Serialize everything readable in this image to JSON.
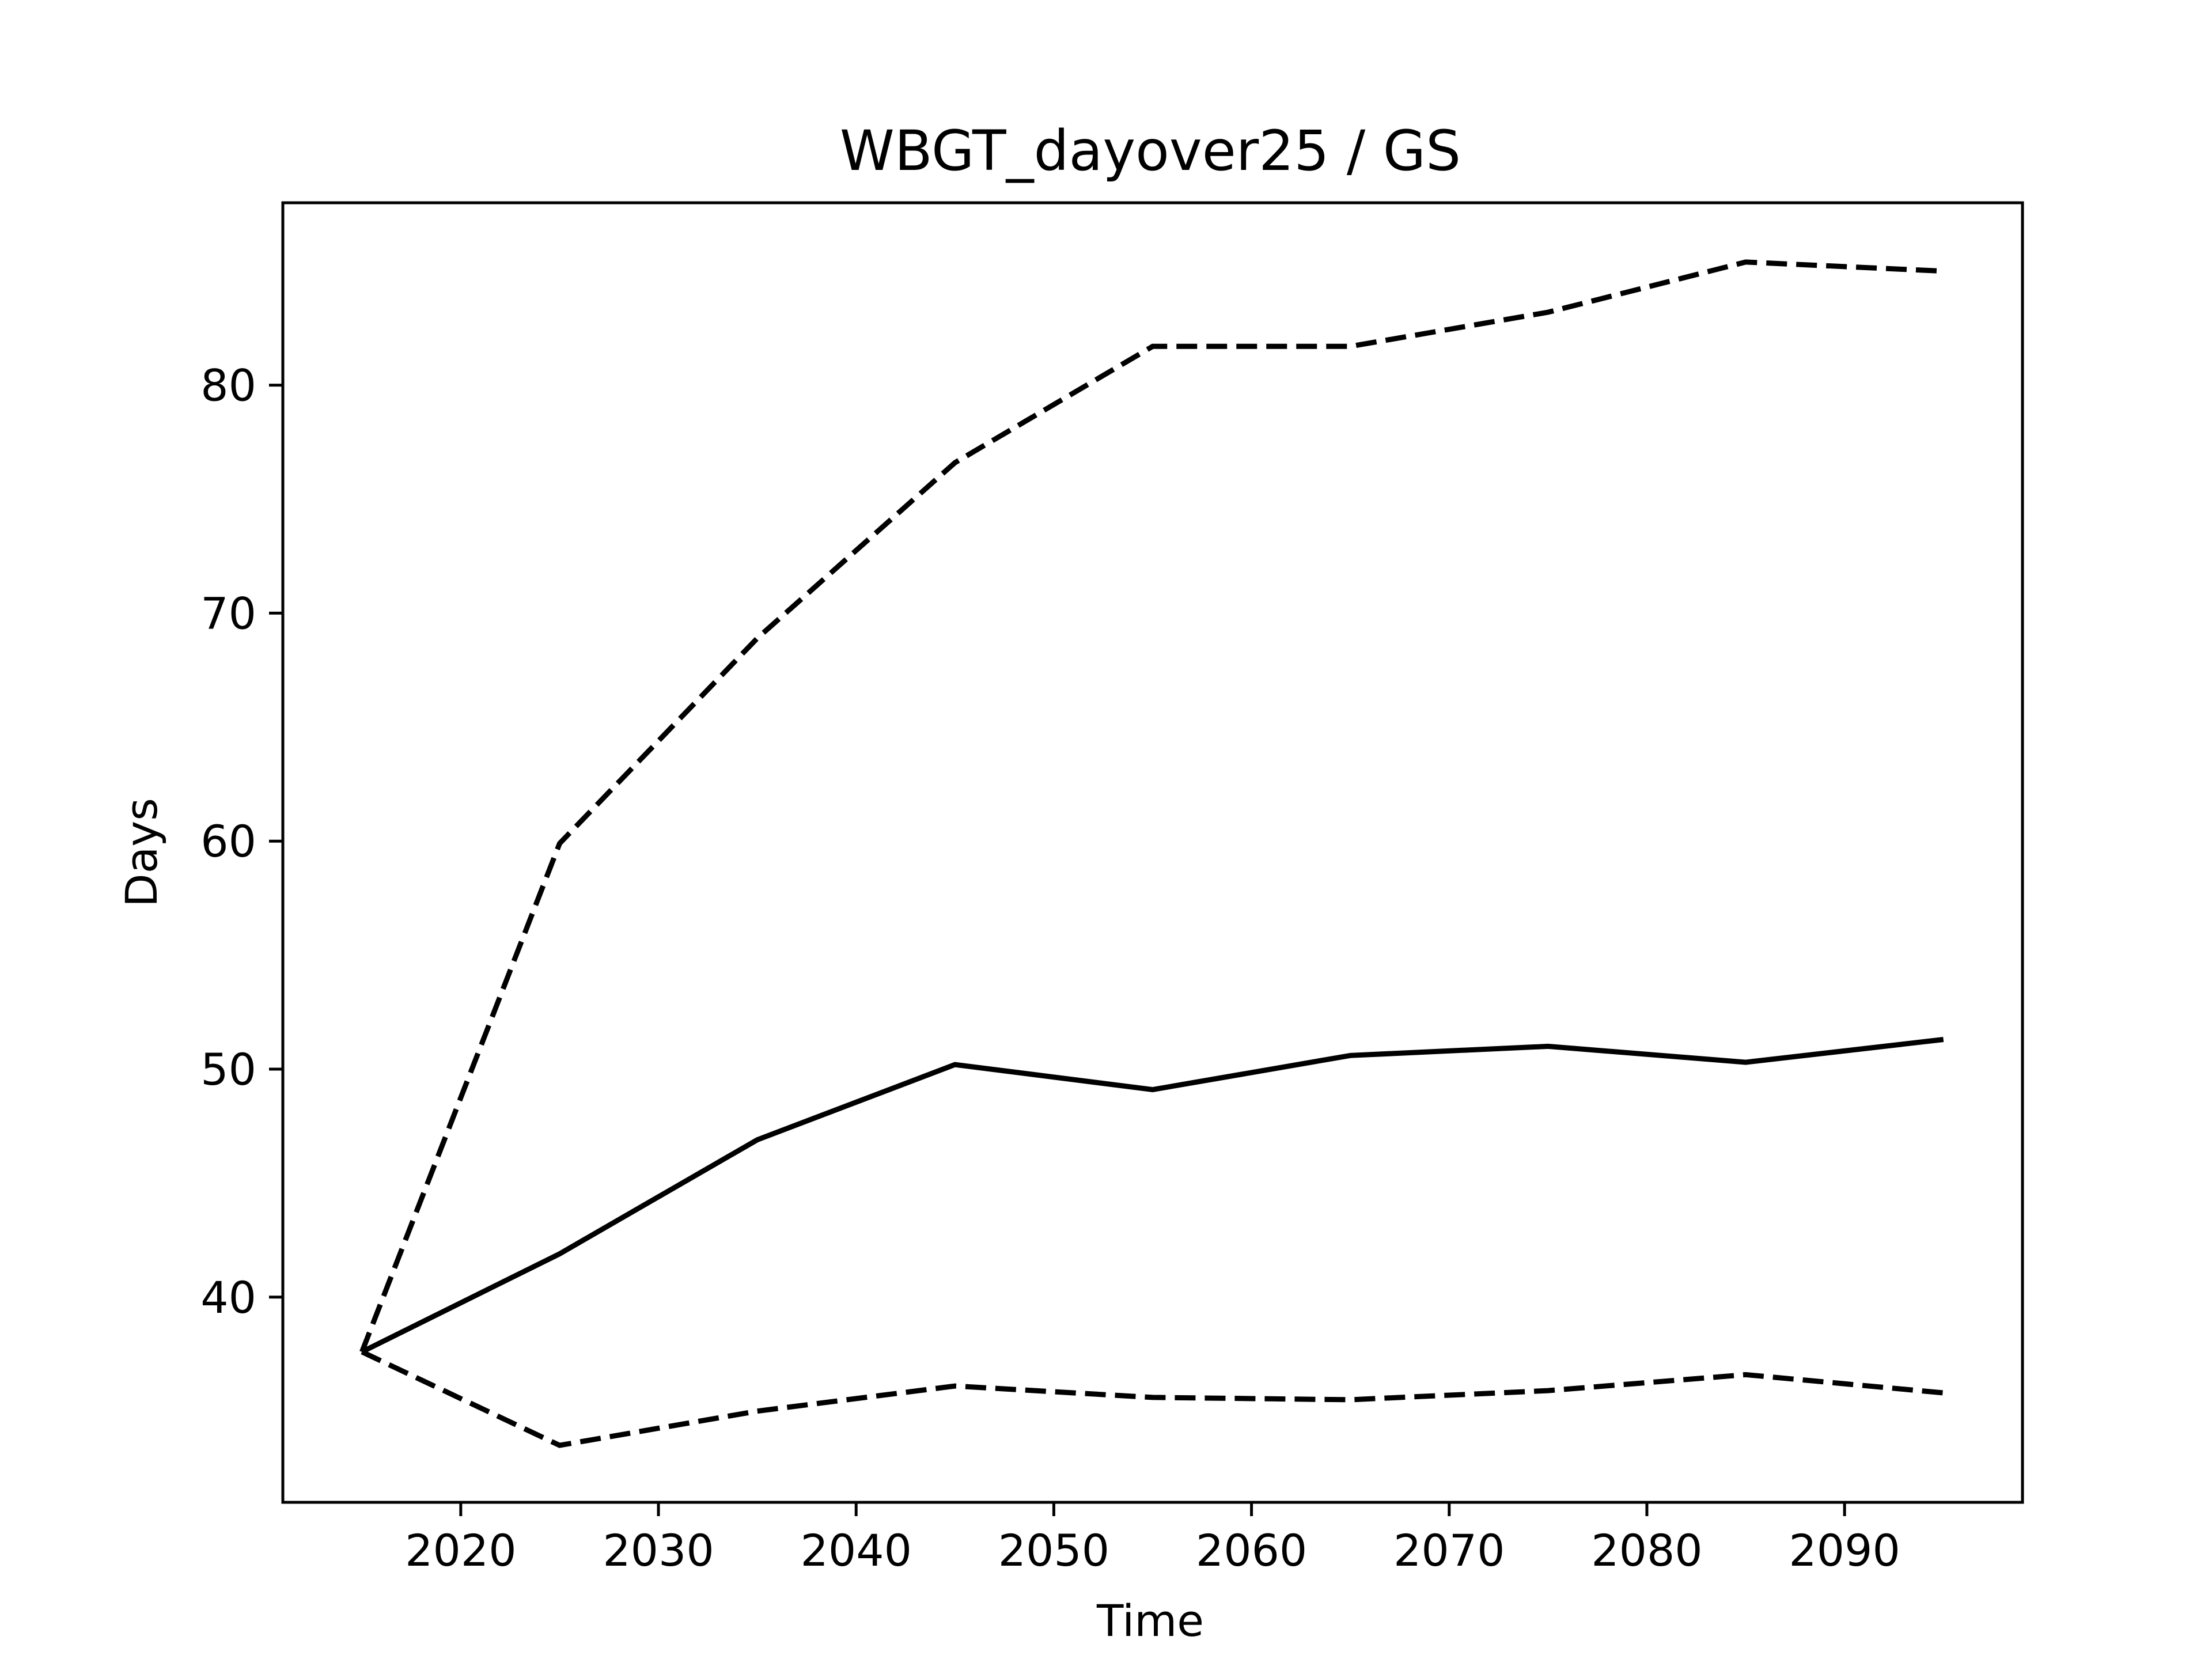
{
  "chart_data": {
    "type": "line",
    "title": "WBGT_dayover25 / GS",
    "xlabel": "Time",
    "ylabel": "Days",
    "xlim": [
      2011,
      2099
    ],
    "ylim": [
      31,
      88
    ],
    "x_ticks": [
      2020,
      2030,
      2040,
      2050,
      2060,
      2070,
      2080,
      2090
    ],
    "y_ticks": [
      40,
      50,
      60,
      70,
      80
    ],
    "grid": false,
    "legend": "none",
    "x": [
      2015,
      2025,
      2035,
      2045,
      2055,
      2065,
      2075,
      2085,
      2095
    ],
    "series": [
      {
        "style": "solid",
        "color": "#000000",
        "values": [
          37.6,
          41.9,
          46.9,
          50.2,
          49.1,
          50.6,
          51.0,
          50.3,
          51.3
        ]
      },
      {
        "style": "dashed",
        "color": "#000000",
        "values": [
          37.6,
          59.9,
          68.9,
          76.6,
          81.7,
          81.7,
          83.2,
          85.4,
          85.0
        ]
      },
      {
        "style": "dashed",
        "color": "#000000",
        "values": [
          37.6,
          33.5,
          35.0,
          36.1,
          35.6,
          35.5,
          35.9,
          36.6,
          35.8
        ]
      }
    ]
  }
}
